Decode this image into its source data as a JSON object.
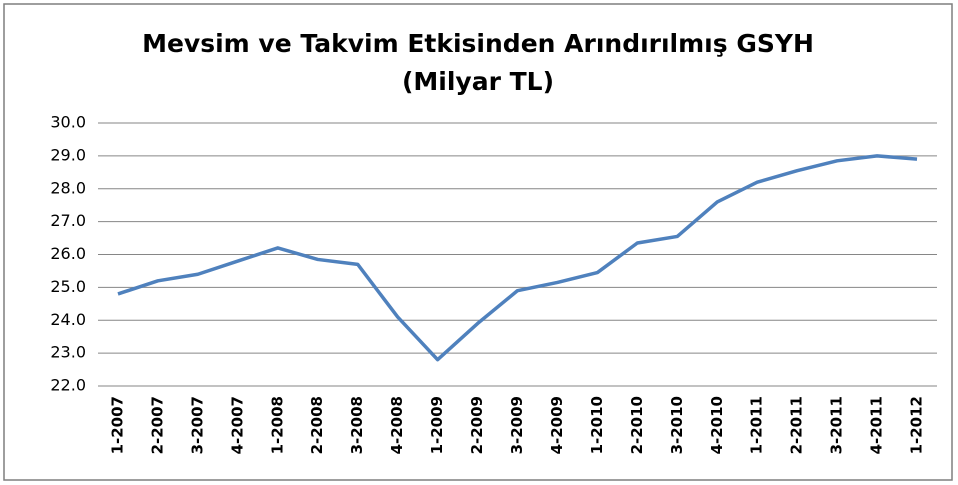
{
  "chart_data": {
    "type": "line",
    "title": "Mevsim ve Takvim Etkisinden Arındırılmış GSYH",
    "subtitle": "(Milyar TL)",
    "categories": [
      "1-2007",
      "2-2007",
      "3-2007",
      "4-2007",
      "1-2008",
      "2-2008",
      "3-2008",
      "4-2008",
      "1-2009",
      "2-2009",
      "3-2009",
      "4-2009",
      "1-2010",
      "2-2010",
      "3-2010",
      "4-2010",
      "1-2011",
      "2-2011",
      "3-2011",
      "4-2011",
      "1-2012"
    ],
    "series": [
      {
        "name": "GSYH",
        "color": "#4f81bd",
        "values": [
          24.8,
          25.2,
          25.4,
          25.8,
          26.2,
          25.85,
          25.7,
          24.1,
          22.8,
          23.9,
          24.9,
          25.15,
          25.45,
          26.35,
          26.55,
          27.6,
          28.2,
          28.55,
          28.85,
          29.0,
          28.9
        ]
      }
    ],
    "ylim": [
      22,
      30
    ],
    "yticks": [
      {
        "value": 22,
        "label": "22.0"
      },
      {
        "value": 23,
        "label": "23.0"
      },
      {
        "value": 24,
        "label": "24.0"
      },
      {
        "value": 25,
        "label": "25.0"
      },
      {
        "value": 26,
        "label": "26.0"
      },
      {
        "value": 27,
        "label": "27.0"
      },
      {
        "value": 28,
        "label": "28.0"
      },
      {
        "value": 29,
        "label": "29.0"
      },
      {
        "value": 30,
        "label": "30.0"
      }
    ],
    "grid": true
  }
}
